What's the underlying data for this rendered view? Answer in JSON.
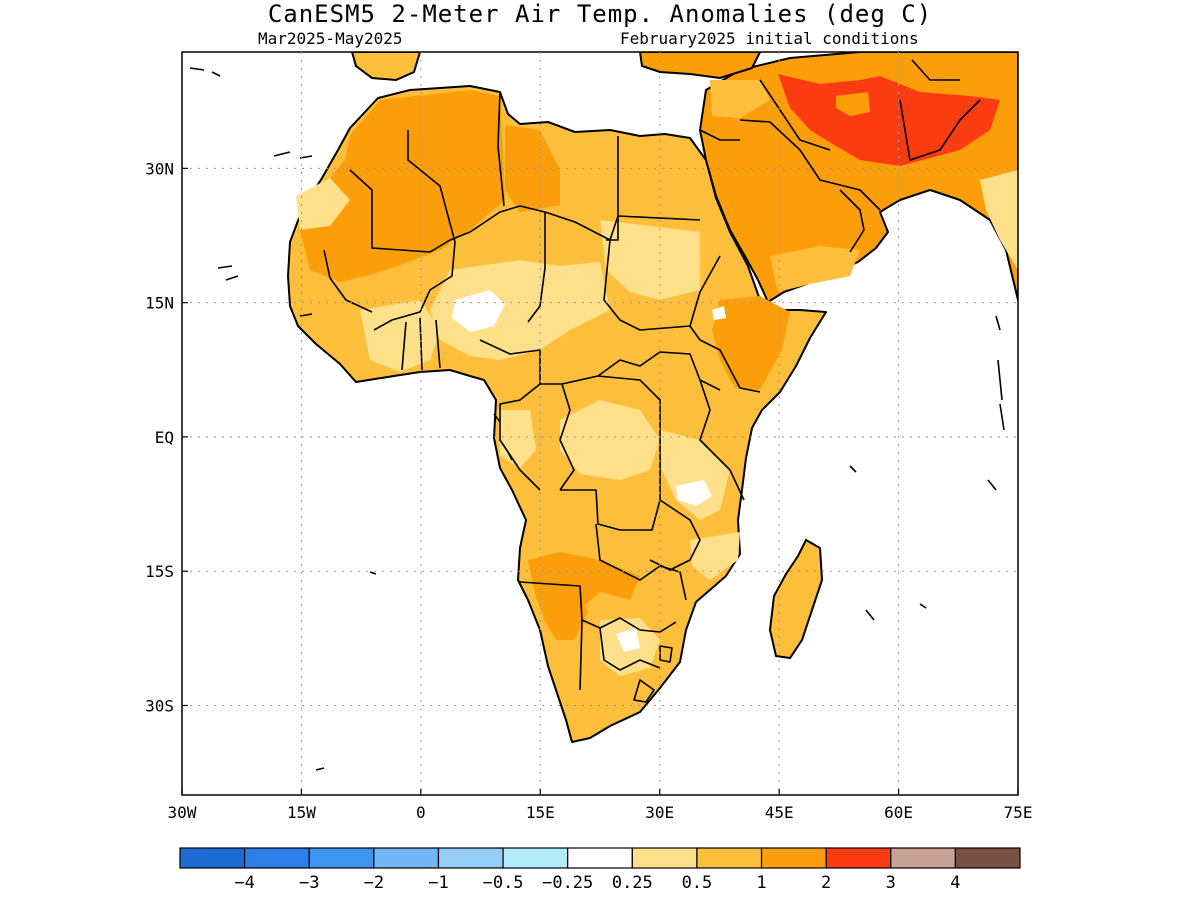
{
  "title": "CanESM5 2-Meter Air Temp. Anomalies (deg C)",
  "subtitle_left": "Mar2025-May2025",
  "subtitle_right": "February2025 initial conditions",
  "axes": {
    "lon_range": [
      -30,
      75
    ],
    "lat_range": [
      -40,
      43
    ],
    "x_ticks": [
      {
        "value": -30,
        "label": "30W"
      },
      {
        "value": -15,
        "label": "15W"
      },
      {
        "value": 0,
        "label": "0"
      },
      {
        "value": 15,
        "label": "15E"
      },
      {
        "value": 30,
        "label": "30E"
      },
      {
        "value": 45,
        "label": "45E"
      },
      {
        "value": 60,
        "label": "60E"
      },
      {
        "value": 75,
        "label": "75E"
      }
    ],
    "y_ticks": [
      {
        "value": 30,
        "label": "30N"
      },
      {
        "value": 15,
        "label": "15N"
      },
      {
        "value": 0,
        "label": "EQ"
      },
      {
        "value": -15,
        "label": "15S"
      },
      {
        "value": -30,
        "label": "30S"
      }
    ],
    "grid": "dotted"
  },
  "colorbar": {
    "colors": [
      "#1f6bd6",
      "#2c7fe8",
      "#3d95f0",
      "#72b6f7",
      "#96cdf7",
      "#b2ecf8",
      "#ffffff",
      "#fee08b",
      "#fdbe3c",
      "#fb9e0a",
      "#fb3c10",
      "#c9a297",
      "#7a5042"
    ],
    "labels": [
      "-4",
      "-3",
      "-2",
      "-1",
      "-0.5",
      "-0.25",
      "0.25",
      "0.5",
      "1",
      "2",
      "3",
      "4"
    ]
  }
}
